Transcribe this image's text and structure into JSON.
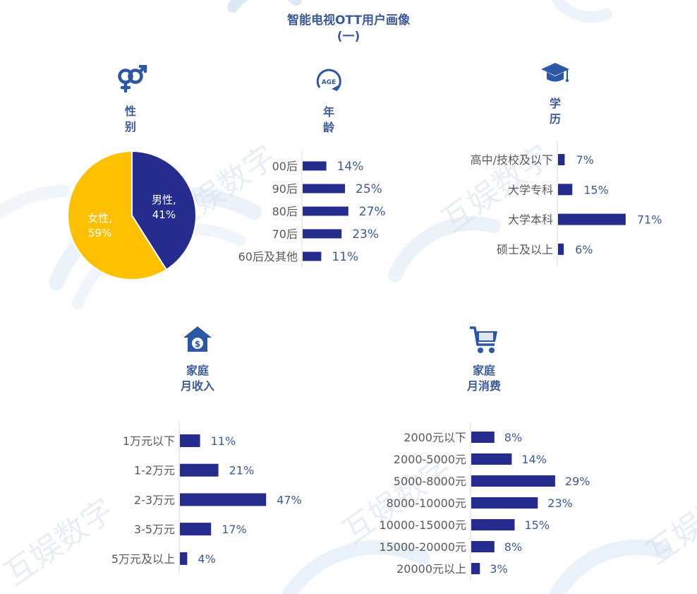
{
  "page": {
    "title_line1": "智能电视OTT用户画像",
    "title_line2": "(一)",
    "watermark_text": "互娱数字",
    "colors": {
      "navy": "#252c8e",
      "gold": "#ffc000",
      "title": "#3d5a98",
      "label": "#595959",
      "value": "#3d5a98"
    }
  },
  "sections": {
    "gender": {
      "title_line1": "性",
      "title_line2": "别",
      "icon": "gender-icon"
    },
    "age": {
      "title_line1": "年",
      "title_line2": "龄",
      "icon": "age-icon",
      "icon_text": "AGE"
    },
    "education": {
      "title_line1": "学",
      "title_line2": "历",
      "icon": "graduation-cap-icon"
    },
    "income": {
      "title_line1": "家庭",
      "title_line2": "月收入",
      "icon": "house-money-icon"
    },
    "consumption": {
      "title_line1": "家庭",
      "title_line2": "月消费",
      "icon": "shopping-cart-icon"
    }
  },
  "chart_data": [
    {
      "id": "gender",
      "type": "pie",
      "categories": [
        "男性",
        "女性"
      ],
      "values": [
        41,
        59
      ],
      "value_labels": [
        "41%",
        "59%"
      ],
      "colors": [
        "#252c8e",
        "#ffc000"
      ]
    },
    {
      "id": "age",
      "type": "bar",
      "orientation": "horizontal",
      "categories": [
        "00后",
        "90后",
        "80后",
        "70后",
        "60后及其他"
      ],
      "values": [
        14,
        25,
        27,
        23,
        11
      ],
      "value_labels": [
        "14%",
        "25%",
        "27%",
        "23%",
        "11%"
      ]
    },
    {
      "id": "education",
      "type": "bar",
      "orientation": "horizontal",
      "categories": [
        "高中/技校及以下",
        "大学专科",
        "大学本科",
        "硕士及以上"
      ],
      "values": [
        7,
        15,
        71,
        6
      ],
      "value_labels": [
        "7%",
        "15%",
        "71%",
        "6%"
      ]
    },
    {
      "id": "income",
      "type": "bar",
      "orientation": "horizontal",
      "categories": [
        "1万元以下",
        "1-2万元",
        "2-3万元",
        "3-5万元",
        "5万元及以上"
      ],
      "values": [
        11,
        21,
        47,
        17,
        4
      ],
      "value_labels": [
        "11%",
        "21%",
        "47%",
        "17%",
        "4%"
      ]
    },
    {
      "id": "consumption",
      "type": "bar",
      "orientation": "horizontal",
      "categories": [
        "2000元以下",
        "2000-5000元",
        "5000-8000元",
        "8000-10000元",
        "10000-15000元",
        "15000-20000元",
        "20000元以上"
      ],
      "values": [
        8,
        14,
        29,
        23,
        15,
        8,
        3
      ],
      "value_labels": [
        "8%",
        "14%",
        "29%",
        "23%",
        "15%",
        "8%",
        "3%"
      ]
    }
  ]
}
